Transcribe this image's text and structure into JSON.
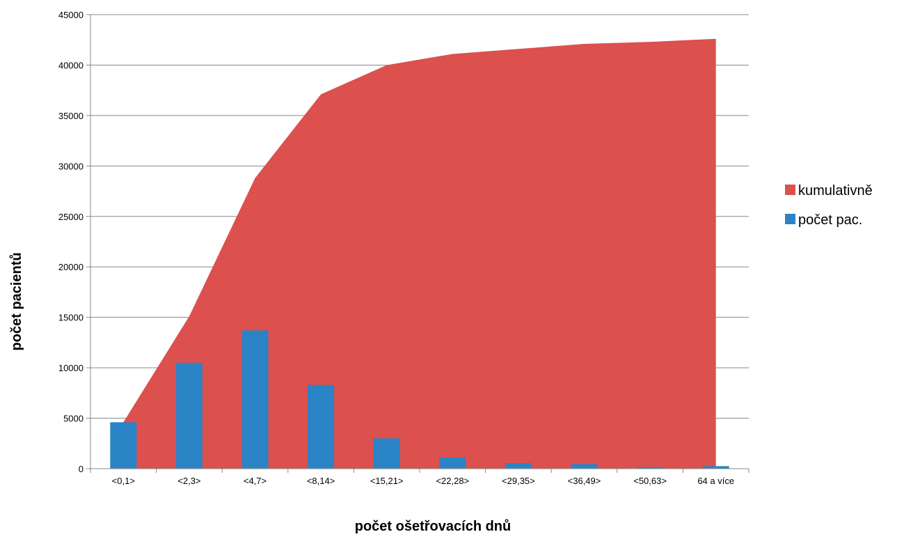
{
  "chart_data": {
    "type": "bar",
    "categories": [
      "<0,1>",
      "<2,3>",
      "<4,7>",
      "<8,14>",
      "<15,21>",
      "<22,28>",
      "<29,35>",
      "<36,49>",
      "<50,63>",
      "64 a více"
    ],
    "series": [
      {
        "name": "kumulativně",
        "type": "area",
        "color": "#dc504e",
        "values": [
          4600,
          15100,
          28800,
          37100,
          40000,
          41100,
          41600,
          42100,
          42300,
          42600
        ]
      },
      {
        "name": "počet pac.",
        "type": "bar",
        "color": "#2a84c6",
        "values": [
          4600,
          10500,
          13700,
          8300,
          3000,
          1100,
          550,
          450,
          150,
          250
        ]
      }
    ],
    "xlabel": "počet ošetřovacích dnů",
    "ylabel": "počet pacientů",
    "ylim": [
      0,
      45000
    ],
    "yticks": [
      0,
      5000,
      10000,
      15000,
      20000,
      25000,
      30000,
      35000,
      40000,
      45000
    ],
    "grid": true,
    "legend": "right"
  }
}
